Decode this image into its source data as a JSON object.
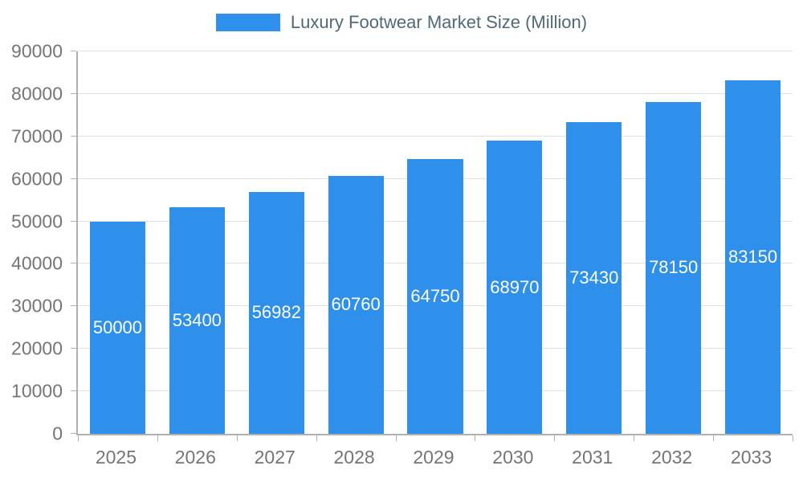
{
  "chart_data": {
    "type": "bar",
    "title": "Luxury Footwear Market Size (Million)",
    "categories": [
      "2025",
      "2026",
      "2027",
      "2028",
      "2029",
      "2030",
      "2031",
      "2032",
      "2033"
    ],
    "values": [
      50000,
      53400,
      56982,
      60760,
      64750,
      68970,
      73430,
      78150,
      83150
    ],
    "xlabel": "",
    "ylabel": "",
    "ylim": [
      0,
      90000
    ],
    "ytick_step": 10000,
    "yticks": [
      0,
      10000,
      20000,
      30000,
      40000,
      50000,
      60000,
      70000,
      80000,
      90000
    ],
    "grid": true,
    "legend_position": "top-center",
    "value_labels": "inside-center",
    "colors": {
      "bar": "#2f90ec",
      "value_label": "#ffffff",
      "tick_label": "#757575",
      "title": "#4e6a78",
      "grid": "#e0e0e0",
      "axis": "#b0b0b0",
      "background": "#ffffff"
    }
  }
}
